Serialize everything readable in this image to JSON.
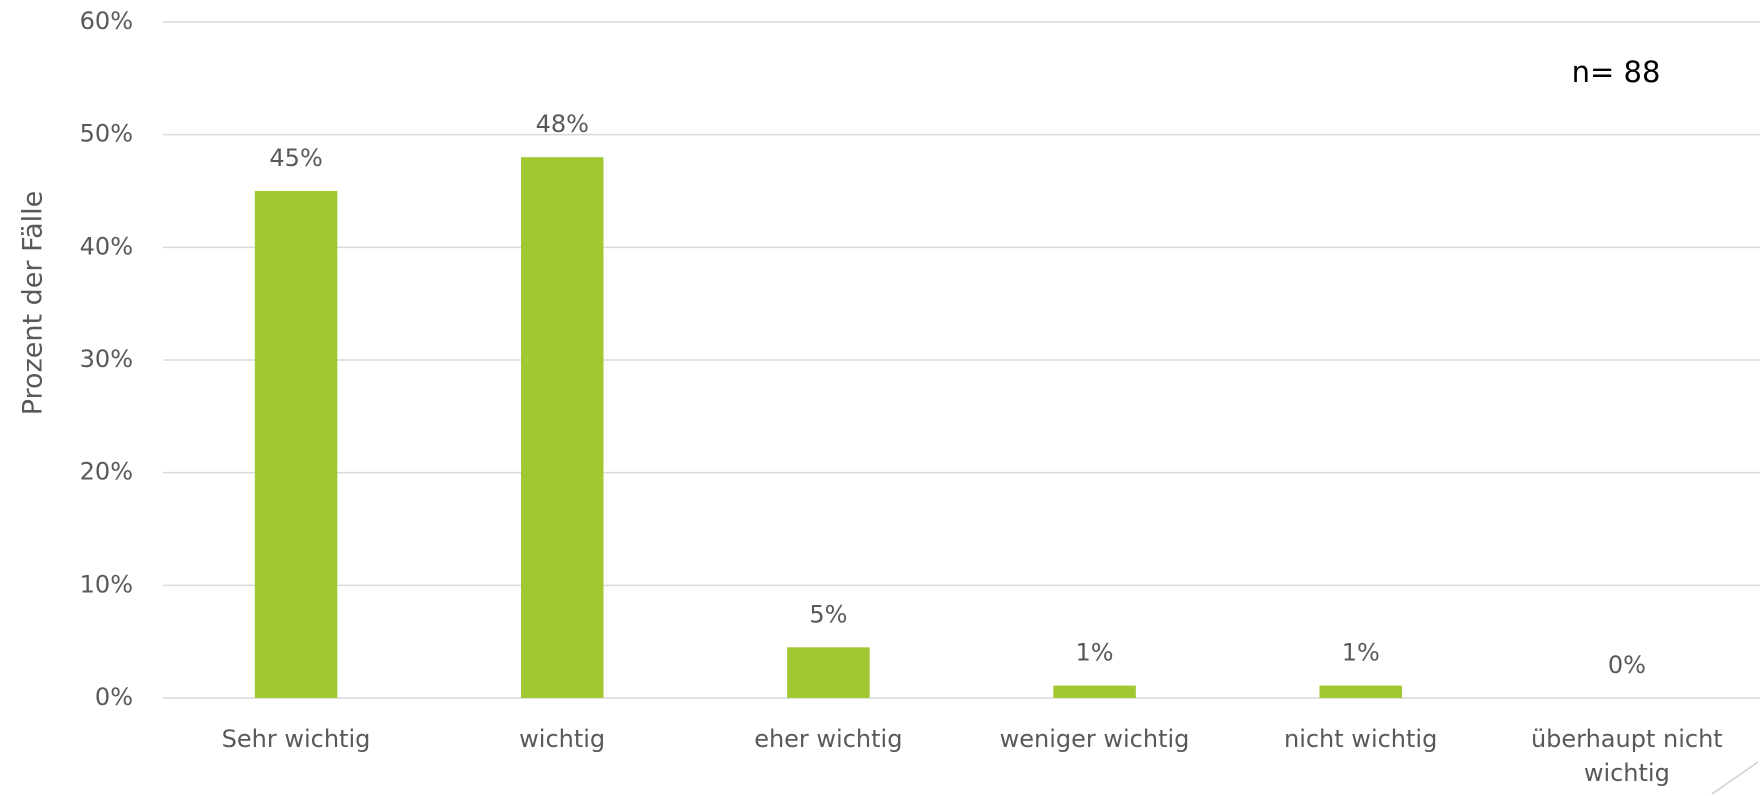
{
  "chart_data": {
    "type": "bar",
    "y_axis_label": "Prozent der Fälle",
    "annotation": "n= 88",
    "categories": [
      "Sehr wichtig",
      "wichtig",
      "eher wichtig",
      "weniger wichtig",
      "nicht wichtig",
      "überhaupt nicht wichtig"
    ],
    "values": [
      45,
      48,
      4.5,
      1.1,
      1.1,
      0
    ],
    "value_labels": [
      "45%",
      "48%",
      "5%",
      "1%",
      "1%",
      "0%"
    ],
    "color": "#a0c832",
    "ylim": [
      0,
      60
    ],
    "yticks": [
      {
        "value": 0,
        "label": "0%"
      },
      {
        "value": 10,
        "label": "10%"
      },
      {
        "value": 20,
        "label": "20%"
      },
      {
        "value": 30,
        "label": "30%"
      },
      {
        "value": 40,
        "label": "40%"
      },
      {
        "value": 50,
        "label": "50%"
      },
      {
        "value": 60,
        "label": "60%"
      }
    ],
    "grid": true
  }
}
